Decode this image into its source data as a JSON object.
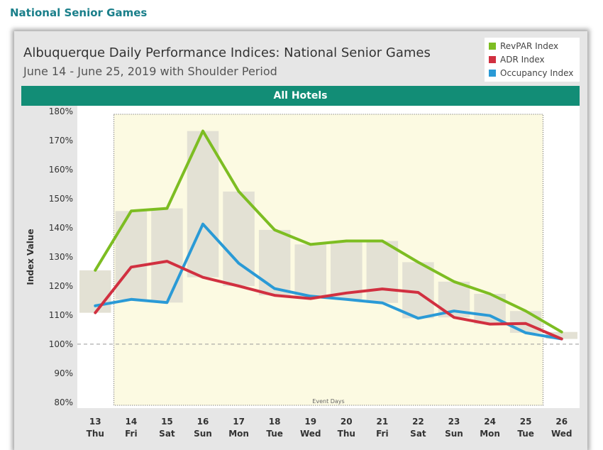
{
  "page": {
    "heading": "National Senior Games"
  },
  "colors": {
    "heading": "#1a7f8a",
    "band": "#128d76",
    "event_fill": "#fcfae2",
    "bar_fill": "#e3e1d4",
    "revpar": "#7dbd22",
    "adr": "#d13040",
    "occupancy": "#2a9ad6",
    "baseline": "#999999"
  },
  "chart_data": {
    "type": "line",
    "title": "Albuquerque Daily Performance Indices: National Senior Games",
    "subtitle": "June 14 - June 25, 2019 with Shoulder Period",
    "band_label": "All Hotels",
    "ylabel": "Index Value",
    "ylim": [
      78,
      182
    ],
    "yticks": [
      {
        "value": 80,
        "label": "80%"
      },
      {
        "value": 90,
        "label": "90%"
      },
      {
        "value": 100,
        "label": "100%"
      },
      {
        "value": 110,
        "label": "110%"
      },
      {
        "value": 120,
        "label": "120%"
      },
      {
        "value": 130,
        "label": "130%"
      },
      {
        "value": 140,
        "label": "140%"
      },
      {
        "value": 150,
        "label": "150%"
      },
      {
        "value": 160,
        "label": "160%"
      },
      {
        "value": 170,
        "label": "170%"
      },
      {
        "value": 180,
        "label": "180%"
      }
    ],
    "baseline": 100,
    "categories": [
      {
        "day": "13",
        "dow": "Thu"
      },
      {
        "day": "14",
        "dow": "Fri"
      },
      {
        "day": "15",
        "dow": "Sat"
      },
      {
        "day": "16",
        "dow": "Sun"
      },
      {
        "day": "17",
        "dow": "Mon"
      },
      {
        "day": "18",
        "dow": "Tue"
      },
      {
        "day": "19",
        "dow": "Wed"
      },
      {
        "day": "20",
        "dow": "Thu"
      },
      {
        "day": "21",
        "dow": "Fri"
      },
      {
        "day": "22",
        "dow": "Sat"
      },
      {
        "day": "23",
        "dow": "Sun"
      },
      {
        "day": "24",
        "dow": "Mon"
      },
      {
        "day": "25",
        "dow": "Tue"
      },
      {
        "day": "26",
        "dow": "Wed"
      }
    ],
    "event_days": {
      "label": "Event Days",
      "start_index": 1,
      "end_index": 12
    },
    "range_bars": [
      {
        "low": 110.8,
        "high": 125.4
      },
      {
        "low": 115.4,
        "high": 145.8
      },
      {
        "low": 114.3,
        "high": 146.7
      },
      {
        "low": 123.0,
        "high": 173.3
      },
      {
        "low": 120.0,
        "high": 152.5
      },
      {
        "low": 116.8,
        "high": 139.3
      },
      {
        "low": 115.7,
        "high": 134.3
      },
      {
        "low": 115.4,
        "high": 135.5
      },
      {
        "low": 114.2,
        "high": 135.5
      },
      {
        "low": 108.9,
        "high": 128.2
      },
      {
        "low": 109.2,
        "high": 121.5
      },
      {
        "low": 106.9,
        "high": 117.3
      },
      {
        "low": 103.9,
        "high": 111.4
      },
      {
        "low": 101.8,
        "high": 104.2
      }
    ],
    "series": [
      {
        "name": "RevPAR Index",
        "color": "#7dbd22",
        "values": [
          125.4,
          145.8,
          146.7,
          173.3,
          152.5,
          139.3,
          134.3,
          135.5,
          135.5,
          128.2,
          121.5,
          117.3,
          111.4,
          104.2
        ]
      },
      {
        "name": "ADR Index",
        "color": "#d13040",
        "values": [
          110.8,
          126.5,
          128.5,
          123.0,
          120.0,
          116.8,
          115.7,
          117.6,
          119.0,
          117.8,
          109.2,
          106.9,
          107.1,
          101.8
        ]
      },
      {
        "name": "Occupancy Index",
        "color": "#2a9ad6",
        "values": [
          113.2,
          115.4,
          114.3,
          141.3,
          127.8,
          119.1,
          116.5,
          115.4,
          114.2,
          108.9,
          111.4,
          109.8,
          103.9,
          101.8
        ]
      }
    ],
    "legend_position": "top-right"
  }
}
